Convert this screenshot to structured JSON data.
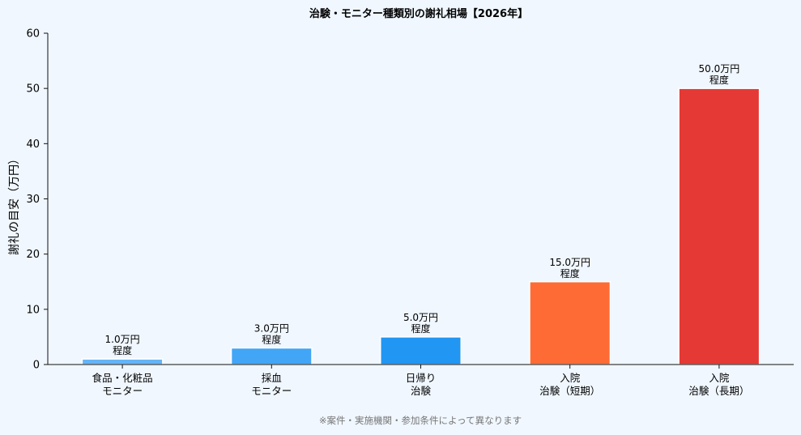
{
  "chart_data": {
    "type": "bar",
    "title": "治験・モニター種類別の謝礼相場【2026年】",
    "xlabel": "",
    "ylabel": "謝礼の目安（万円）",
    "ylim": [
      0,
      60
    ],
    "yticks": [
      "0",
      "10",
      "20",
      "30",
      "40",
      "50",
      "60"
    ],
    "grid": false,
    "categories": [
      [
        "食品・化粧品",
        "モニター"
      ],
      [
        "採血",
        "モニター"
      ],
      [
        "日帰り",
        "治験"
      ],
      [
        "入院",
        "治験（短期）"
      ],
      [
        "入院",
        "治験（長期）"
      ]
    ],
    "values": [
      1.0,
      3.0,
      5.0,
      15.0,
      50.0
    ],
    "data_labels": [
      [
        "1.0万円",
        "程度"
      ],
      [
        "3.0万円",
        "程度"
      ],
      [
        "5.0万円",
        "程度"
      ],
      [
        "15.0万円",
        "程度"
      ],
      [
        "50.0万円",
        "程度"
      ]
    ],
    "colors": [
      "#64b5f6",
      "#42a5f5",
      "#2196f3",
      "#ff6b35",
      "#e53935"
    ],
    "note": "※案件・実施機関・参加条件によって異なります"
  }
}
